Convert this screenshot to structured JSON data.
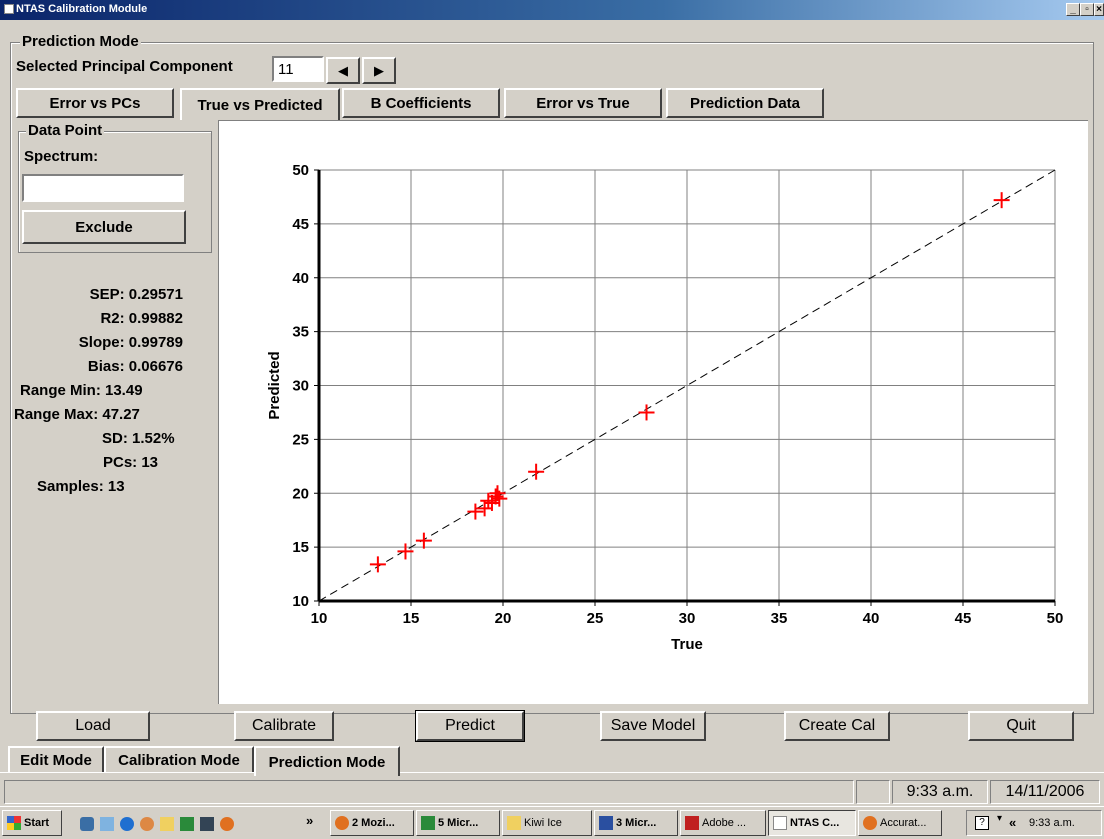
{
  "window": {
    "title": "NTAS Calibration Module"
  },
  "mode_group": {
    "label": "Prediction Mode"
  },
  "pc_selector": {
    "label": "Selected Principal Component",
    "value": "11"
  },
  "tabs": [
    {
      "label": "Error vs PCs"
    },
    {
      "label": "True vs Predicted"
    },
    {
      "label": "B Coefficients"
    },
    {
      "label": "Error vs True"
    },
    {
      "label": "Prediction Data"
    }
  ],
  "data_point": {
    "label": "Data Point",
    "spectrum_label": "Spectrum:",
    "spectrum_value": "",
    "exclude_label": "Exclude"
  },
  "stats": {
    "sep": "SEP: 0.29571",
    "r2": "R2: 0.99882",
    "slope": "Slope: 0.99789",
    "bias": "Bias: 0.06676",
    "range_min": "Range Min: 13.49",
    "range_max": "Range Max: 47.27",
    "sd": "SD: 1.52%",
    "pcs": "PCs: 13",
    "samples": "Samples: 13"
  },
  "chart_data": {
    "type": "scatter",
    "title": "",
    "xlabel": "True",
    "ylabel": "Predicted",
    "xlim": [
      10,
      50
    ],
    "ylim": [
      10,
      50
    ],
    "xticks": [
      "10",
      "15",
      "20",
      "25",
      "30",
      "35",
      "40",
      "45",
      "50"
    ],
    "yticks": [
      "10",
      "15",
      "20",
      "25",
      "30",
      "35",
      "40",
      "45",
      "50"
    ],
    "grid": true,
    "reference_line": "y = x (dashed)",
    "marker_color": "#ff0000",
    "points": [
      {
        "x": 13.2,
        "y": 13.4
      },
      {
        "x": 14.7,
        "y": 14.6
      },
      {
        "x": 15.7,
        "y": 15.6
      },
      {
        "x": 18.5,
        "y": 18.3
      },
      {
        "x": 19.0,
        "y": 18.6
      },
      {
        "x": 19.2,
        "y": 19.3
      },
      {
        "x": 19.4,
        "y": 19.1
      },
      {
        "x": 19.6,
        "y": 19.7
      },
      {
        "x": 19.7,
        "y": 20.0
      },
      {
        "x": 19.8,
        "y": 19.5
      },
      {
        "x": 21.8,
        "y": 22.0
      },
      {
        "x": 27.8,
        "y": 27.5
      },
      {
        "x": 47.1,
        "y": 47.2
      }
    ]
  },
  "bottom_buttons": {
    "load": "Load",
    "calibrate": "Calibrate",
    "predict": "Predict",
    "save_model": "Save Model",
    "create_cal": "Create Cal",
    "quit": "Quit"
  },
  "mode_tabs": [
    {
      "label": "Edit Mode"
    },
    {
      "label": "Calibration Mode"
    },
    {
      "label": "Prediction Mode"
    }
  ],
  "statusbar": {
    "time": "9:33 a.m.",
    "date": "14/11/2006"
  },
  "taskbar": {
    "start": "Start",
    "chevron": "»",
    "tasks": [
      {
        "label": "2 Mozi...",
        "icon": "firefox-icon"
      },
      {
        "label": "5 Micr...",
        "icon": "excel-icon"
      },
      {
        "label": "Kiwi Ice",
        "icon": "folder-icon"
      },
      {
        "label": "3 Micr...",
        "icon": "word-icon"
      },
      {
        "label": "Adobe ...",
        "icon": "acrobat-icon"
      },
      {
        "label": "NTAS C...",
        "icon": "app-icon"
      },
      {
        "label": "Accurat...",
        "icon": "firefox-icon"
      }
    ],
    "tray_chevron": "«",
    "clock": "9:33 a.m."
  }
}
